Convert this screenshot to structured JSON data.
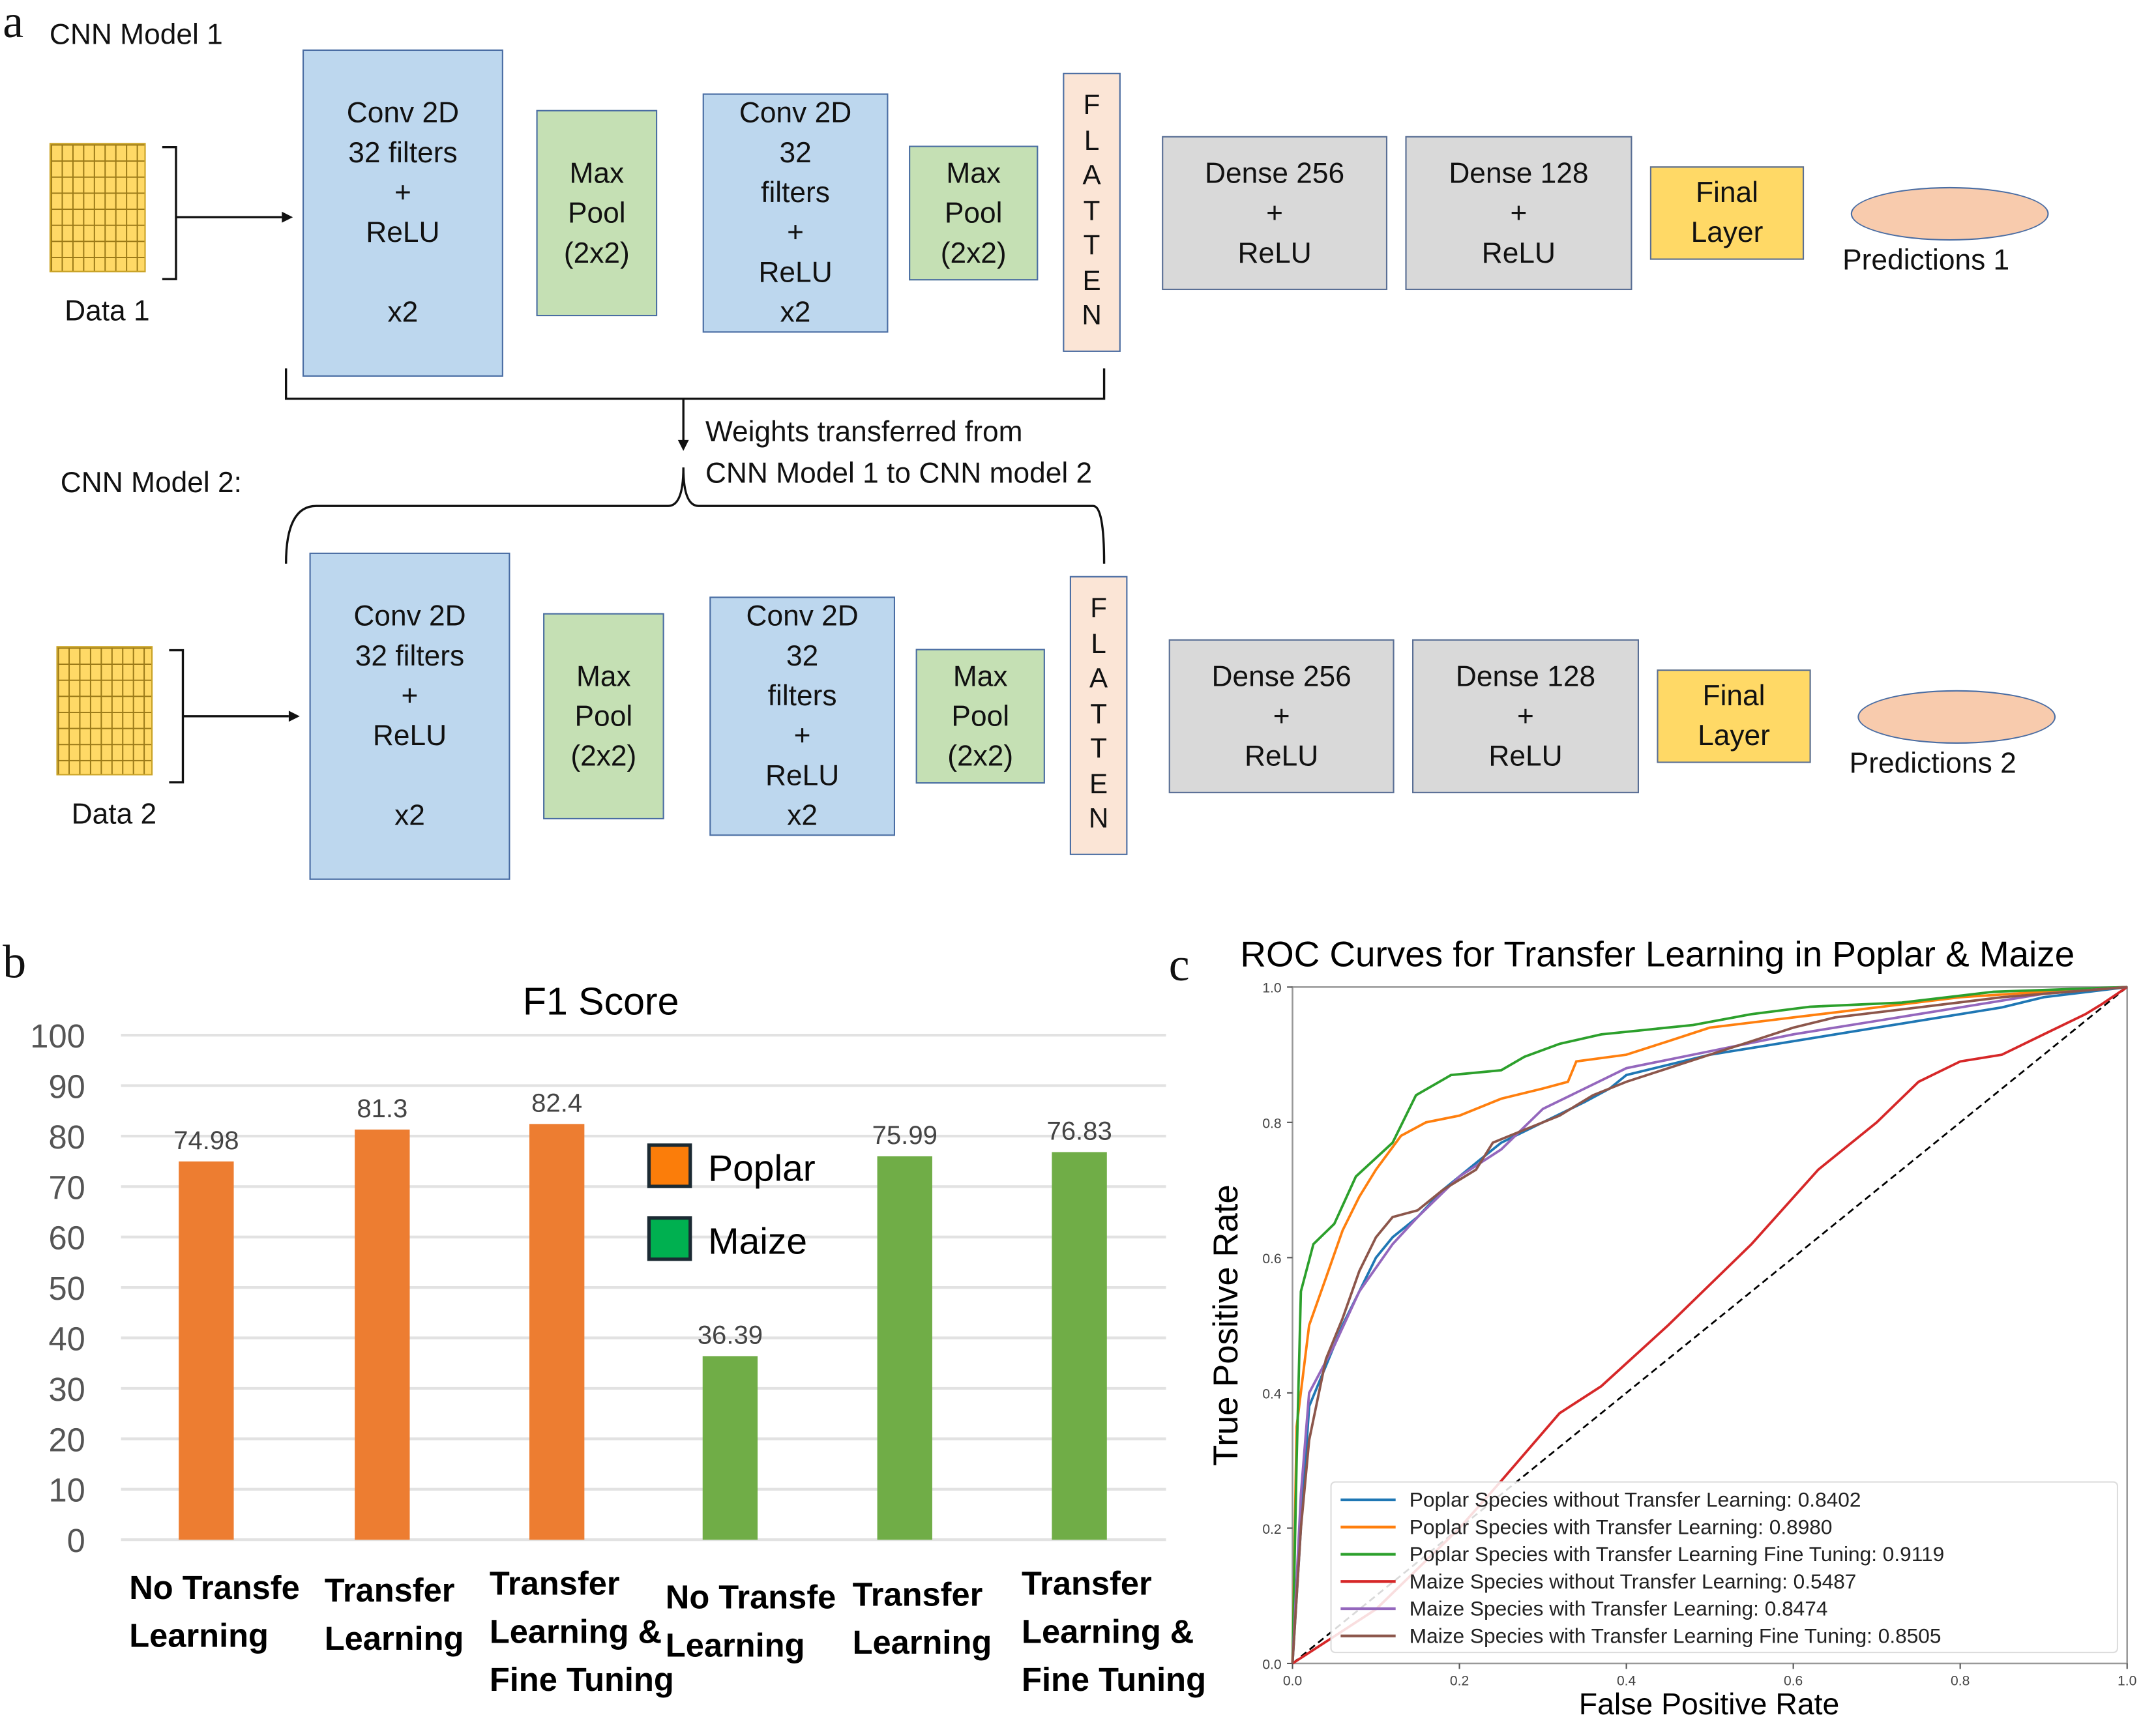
{
  "panel_labels": {
    "a": "a",
    "b": "b",
    "c": "c"
  },
  "diagram": {
    "transfer_note": "Weights transferred from\nCNN Model 1 to CNN model 2",
    "models": [
      {
        "title": "CNN Model 1",
        "data_label": "Data 1",
        "conv1": "Conv 2D\n32 filters\n+\nReLU\n\nx2",
        "pool1": "Max\nPool\n(2x2)",
        "conv2": "Conv 2D\n32\nfilters\n+\nReLU\nx2",
        "pool2": "Max\nPool\n(2x2)",
        "flatten": "F\nL\nA\nT\nT\nE\nN",
        "dense1": "Dense 256\n+\nReLU",
        "dense2": "Dense 128\n+\nReLU",
        "final": "Final\nLayer",
        "predictions": "Predictions 1"
      },
      {
        "title": "CNN Model 2:",
        "data_label": "Data 2",
        "conv1": "Conv 2D\n32 filters\n+\nReLU\n\nx2",
        "pool1": "Max\nPool\n(2x2)",
        "conv2": "Conv 2D\n32\nfilters\n+\nReLU\nx2",
        "pool2": "Max\nPool\n(2x2)",
        "flatten": "F\nL\nA\nT\nT\nE\nN",
        "dense1": "Dense 256\n+\nReLU",
        "dense2": "Dense 128\n+\nReLU",
        "final": "Final\nLayer",
        "predictions": "Predictions 2"
      }
    ],
    "colors": {
      "conv": "#bdd7ee",
      "pool": "#c5e0b4",
      "flatten": "#fbe5d6",
      "dense": "#d9d9d9",
      "final": "#ffd966",
      "predictions": "#f8cbad",
      "data": "#ffd966"
    }
  },
  "chart_data": [
    {
      "type": "bar",
      "title": "F1 Score",
      "categories": [
        [
          "No Transfe",
          "Learning"
        ],
        [
          "Transfer",
          "Learning"
        ],
        [
          "Transfer",
          "Learning &",
          "Fine Tuning"
        ],
        [
          "No Transfe",
          "Learning"
        ],
        [
          "Transfer",
          "Learning"
        ],
        [
          "Transfer",
          "Learning &",
          "Fine Tuning"
        ]
      ],
      "values": [
        74.98,
        81.3,
        82.4,
        36.39,
        75.99,
        76.83
      ],
      "value_labels": [
        "74.98",
        "81.3",
        "82.4",
        "36.39",
        "75.99",
        "76.83"
      ],
      "bar_groups": [
        "Poplar",
        "Poplar",
        "Poplar",
        "Maize",
        "Maize",
        "Maize"
      ],
      "bar_colors": {
        "Poplar": "#ed7d31",
        "Maize": "#70ad47"
      },
      "legend": [
        {
          "name": "Poplar",
          "color": "#fb7d0a"
        },
        {
          "name": "Maize",
          "color": "#00b050"
        }
      ],
      "legend_placement": "center",
      "yticks": [
        "0",
        "10",
        "20",
        "30",
        "40",
        "50",
        "60",
        "70",
        "80",
        "90",
        "100"
      ],
      "ylim": [
        0,
        100
      ],
      "grid": true,
      "xlabel": "",
      "ylabel": ""
    },
    {
      "type": "line",
      "title": "ROC Curves for Transfer Learning in Poplar & Maize",
      "xlabel": "False Positive Rate",
      "ylabel": "True Positive Rate",
      "xlim": [
        0,
        1
      ],
      "ylim": [
        0,
        1
      ],
      "xticks": [
        "0.0",
        "0.2",
        "0.4",
        "0.6",
        "0.8",
        "1.0"
      ],
      "yticks": [
        "0.0",
        "0.2",
        "0.4",
        "0.6",
        "0.8",
        "1.0"
      ],
      "grid": false,
      "legend_placement": "lower-right",
      "diagonal": {
        "style": "dashed",
        "color": "#000000"
      },
      "series": [
        {
          "name": "Poplar Species without Transfer Learning: 0.8402",
          "color": "#1f77b4",
          "x": [
            0,
            0.01,
            0.02,
            0.04,
            0.06,
            0.08,
            0.1,
            0.12,
            0.15,
            0.18,
            0.22,
            0.25,
            0.3,
            0.35,
            0.38,
            0.4,
            0.5,
            0.6,
            0.7,
            0.8,
            0.85,
            0.9,
            1
          ],
          "y": [
            0,
            0.2,
            0.38,
            0.44,
            0.5,
            0.55,
            0.6,
            0.63,
            0.66,
            0.7,
            0.74,
            0.77,
            0.8,
            0.83,
            0.85,
            0.87,
            0.9,
            0.92,
            0.94,
            0.96,
            0.97,
            0.985,
            1
          ]
        },
        {
          "name": "Poplar Species with Transfer Learning: 0.8980",
          "color": "#ff7f0e",
          "x": [
            0,
            0.005,
            0.02,
            0.04,
            0.06,
            0.08,
            0.1,
            0.13,
            0.16,
            0.2,
            0.25,
            0.3,
            0.33,
            0.34,
            0.4,
            0.45,
            0.5,
            0.6,
            0.7,
            0.8,
            0.9,
            1
          ],
          "y": [
            0,
            0.35,
            0.5,
            0.57,
            0.64,
            0.69,
            0.73,
            0.78,
            0.8,
            0.81,
            0.835,
            0.85,
            0.86,
            0.89,
            0.9,
            0.92,
            0.94,
            0.955,
            0.97,
            0.985,
            0.993,
            1
          ]
        },
        {
          "name": "Poplar Species with Transfer Learning Fine Tuning: 0.9119",
          "color": "#2ca02c",
          "x": [
            0,
            0.005,
            0.01,
            0.025,
            0.05,
            0.076,
            0.12,
            0.148,
            0.19,
            0.25,
            0.278,
            0.32,
            0.37,
            0.48,
            0.55,
            0.62,
            0.73,
            0.84,
            1
          ],
          "y": [
            0,
            0.3,
            0.55,
            0.62,
            0.65,
            0.72,
            0.77,
            0.84,
            0.87,
            0.877,
            0.897,
            0.916,
            0.93,
            0.944,
            0.96,
            0.971,
            0.977,
            0.993,
            1
          ]
        },
        {
          "name": "Maize Species without Transfer Learning: 0.5487",
          "color": "#d62728",
          "x": [
            0,
            0.1,
            0.2,
            0.25,
            0.32,
            0.37,
            0.45,
            0.55,
            0.63,
            0.7,
            0.75,
            0.8,
            0.85,
            0.9,
            0.95,
            0.97,
            1
          ],
          "y": [
            0,
            0.08,
            0.2,
            0.27,
            0.37,
            0.41,
            0.5,
            0.62,
            0.73,
            0.8,
            0.86,
            0.89,
            0.9,
            0.93,
            0.96,
            0.975,
            1
          ]
        },
        {
          "name": "Maize Species with Transfer Learning: 0.8474",
          "color": "#9467bd",
          "x": [
            0,
            0.01,
            0.02,
            0.05,
            0.08,
            0.12,
            0.15,
            0.2,
            0.25,
            0.3,
            0.35,
            0.4,
            0.5,
            0.6,
            0.7,
            0.8,
            0.9,
            1
          ],
          "y": [
            0,
            0.25,
            0.4,
            0.47,
            0.55,
            0.62,
            0.66,
            0.72,
            0.76,
            0.82,
            0.85,
            0.88,
            0.905,
            0.93,
            0.95,
            0.97,
            0.99,
            1
          ]
        },
        {
          "name": "Maize Species with Transfer Learning Fine Tuning: 0.8505",
          "color": "#8c564b",
          "x": [
            0,
            0.01,
            0.02,
            0.04,
            0.06,
            0.08,
            0.1,
            0.12,
            0.15,
            0.18,
            0.22,
            0.24,
            0.28,
            0.32,
            0.36,
            0.4,
            0.5,
            0.55,
            0.6,
            0.65,
            0.75,
            0.85,
            1
          ],
          "y": [
            0,
            0.2,
            0.33,
            0.45,
            0.51,
            0.58,
            0.63,
            0.66,
            0.67,
            0.7,
            0.73,
            0.77,
            0.79,
            0.81,
            0.84,
            0.86,
            0.9,
            0.92,
            0.94,
            0.955,
            0.97,
            0.985,
            1
          ]
        }
      ]
    }
  ]
}
